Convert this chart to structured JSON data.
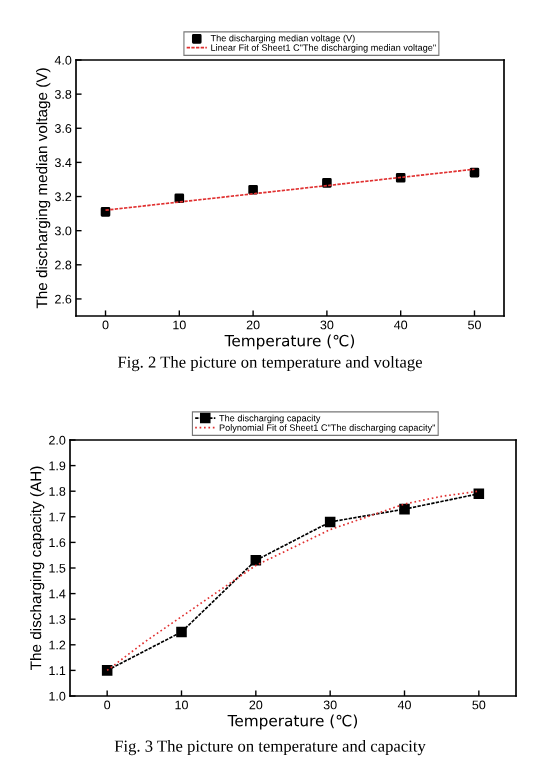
{
  "chart_data": [
    {
      "type": "scatter",
      "xlabel": "Temperature (℃)",
      "ylabel": "The discharging median voltage (V)",
      "x": [
        0,
        10,
        20,
        30,
        40,
        50
      ],
      "xlim": [
        -4,
        54
      ],
      "xticks": [
        0,
        10,
        20,
        30,
        40,
        50
      ],
      "ylim": [
        2.5,
        4.0
      ],
      "yticks": [
        2.6,
        2.8,
        {
          "value": 3.0,
          "label": "3.0"
        },
        3.2,
        3.4,
        3.6,
        3.8,
        {
          "value": 4.0,
          "label": "4.0"
        }
      ],
      "legend": "top",
      "grid": false,
      "series": [
        {
          "name": "The discharging median voltage (V)",
          "color": "#000000",
          "marker": "square",
          "values": [
            3.11,
            3.19,
            3.24,
            3.28,
            3.31,
            3.34
          ]
        },
        {
          "name": "Linear Fit of Sheet1 C\"The discharging median voltage\"",
          "type": "line",
          "line_style": "dashed",
          "color": "#e03030",
          "x": [
            0,
            50
          ],
          "values": [
            3.12,
            3.36
          ]
        }
      ],
      "annotations": [
        "Fig. 2 The picture on temperature and voltage"
      ]
    },
    {
      "type": "line",
      "xlabel": "Temperature (℃)",
      "ylabel": "The discharging capacity (AH)",
      "x": [
        0,
        10,
        20,
        30,
        40,
        50
      ],
      "xlim": [
        -5,
        55
      ],
      "xticks": [
        0,
        10,
        20,
        30,
        40,
        50
      ],
      "ylim": [
        1.0,
        2.0
      ],
      "yticks": [
        {
          "value": 1.0,
          "label": "1.0"
        },
        1.1,
        1.2,
        1.3,
        1.4,
        1.5,
        1.6,
        1.7,
        1.8,
        1.9,
        {
          "value": 2.0,
          "label": "2.0"
        }
      ],
      "legend": "top",
      "grid": false,
      "series": [
        {
          "name": "The discharging capacity",
          "color": "#000000",
          "marker": "square",
          "line_style": "dashed",
          "values": [
            1.1,
            1.25,
            1.53,
            1.68,
            1.73,
            1.79
          ]
        },
        {
          "name": "Polynomial Fit of Sheet1 C\"The discharging capacity\"",
          "type": "line",
          "line_style": "dotted",
          "color": "#e03030",
          "marker": "none",
          "x": [
            0,
            5,
            10,
            15,
            20,
            25,
            30,
            35,
            40,
            45,
            50
          ],
          "values": [
            1.1,
            1.21,
            1.31,
            1.41,
            1.51,
            1.58,
            1.65,
            1.7,
            1.75,
            1.78,
            1.8
          ]
        }
      ],
      "annotations": [
        "Fig. 3 The picture on temperature and capacity"
      ]
    }
  ]
}
